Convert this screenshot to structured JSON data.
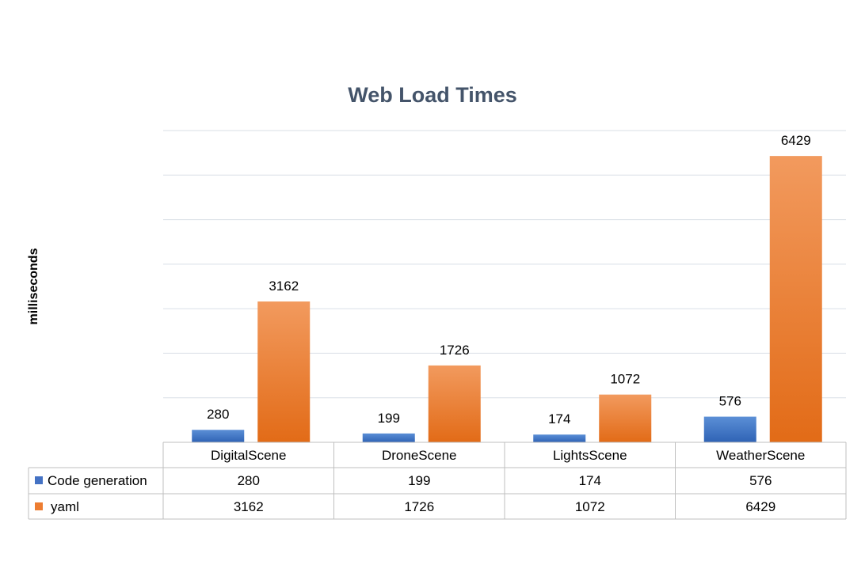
{
  "chart_data": {
    "type": "bar",
    "title": "Web Load Times",
    "xlabel": "",
    "ylabel": "milliseconds",
    "categories": [
      "DigitalScene",
      "DroneScene",
      "LightsScene",
      "WeatherScene"
    ],
    "series": [
      {
        "name": "Code generation",
        "values": [
          280,
          199,
          174,
          576
        ],
        "color": "#4472c4"
      },
      {
        "name": "yaml",
        "values": [
          3162,
          1726,
          1072,
          6429
        ],
        "color": "#ed7d31"
      }
    ],
    "ylim": [
      0,
      7000
    ],
    "grid": true,
    "legend": "data-table",
    "data_table": true
  }
}
